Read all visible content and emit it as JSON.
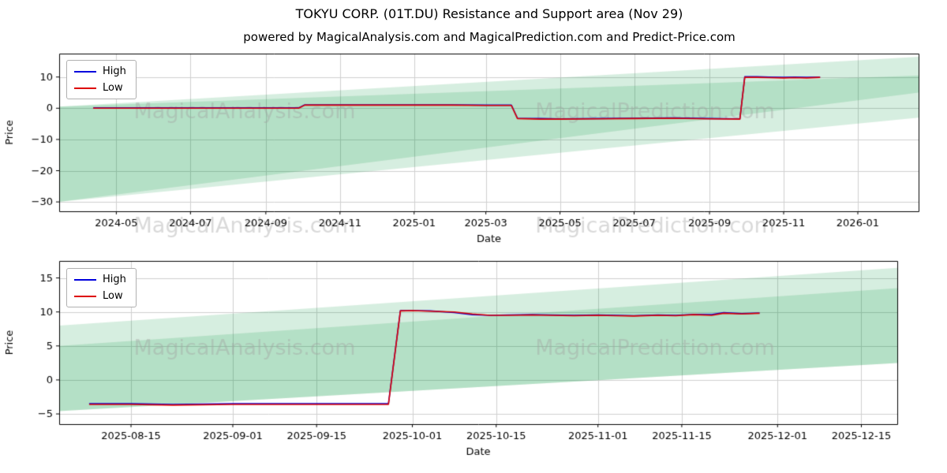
{
  "title": "TOKYU CORP. (01T.DU) Resistance and Support area (Nov 29)",
  "subtitle": "powered by MagicalAnalysis.com and MagicalPrediction.com and Predict-Price.com",
  "watermarks": [
    "MagicalAnalysis.com",
    "MagicalPrediction.com"
  ],
  "colors": {
    "high": "#0000dd",
    "low": "#dd0000",
    "grid": "#cfcfcf",
    "axis": "#000000",
    "band": "rgba(0,150,60,0.16)",
    "watermark": "rgba(160,160,160,0.4)"
  },
  "chart_data": [
    {
      "type": "line",
      "title": "",
      "xlabel": "Date",
      "ylabel": "Price",
      "grid": true,
      "legend_position": "upper-left",
      "xlim": [
        "2024-03-15",
        "2026-02-20"
      ],
      "ylim": [
        -33,
        17.5
      ],
      "yticks": [
        10,
        0,
        -10,
        -20,
        -30
      ],
      "xticks": [
        {
          "v": "2024-05-01",
          "label": "2024-05"
        },
        {
          "v": "2024-07-01",
          "label": "2024-07"
        },
        {
          "v": "2024-09-01",
          "label": "2024-09"
        },
        {
          "v": "2024-11-01",
          "label": "2024-11"
        },
        {
          "v": "2025-01-01",
          "label": "2025-01"
        },
        {
          "v": "2025-03-01",
          "label": "2025-03"
        },
        {
          "v": "2025-05-01",
          "label": "2025-05"
        },
        {
          "v": "2025-07-01",
          "label": "2025-07"
        },
        {
          "v": "2025-09-01",
          "label": "2025-09"
        },
        {
          "v": "2025-11-01",
          "label": "2025-11"
        },
        {
          "v": "2026-01-01",
          "label": "2026-01"
        }
      ],
      "legend": [
        {
          "label": "High",
          "color": "#0000dd"
        },
        {
          "label": "Low",
          "color": "#dd0000"
        }
      ],
      "bands": [
        {
          "top": [
            0.5,
            16.5
          ],
          "bottom": [
            -30,
            5.0
          ],
          "color": "rgba(0,150,60,0.16)"
        },
        {
          "top": [
            0.5,
            10.5
          ],
          "bottom": [
            -30,
            -3.0
          ],
          "color": "rgba(0,150,60,0.16)"
        }
      ],
      "series": [
        {
          "name": "High",
          "color": "#0000dd",
          "x": [
            "2024-04-12",
            "2024-05-01",
            "2024-06-01",
            "2024-07-01",
            "2024-08-01",
            "2024-09-01",
            "2024-09-28",
            "2024-10-03",
            "2024-11-01",
            "2024-12-01",
            "2025-01-01",
            "2025-02-01",
            "2025-03-01",
            "2025-03-22",
            "2025-03-27",
            "2025-04-15",
            "2025-05-01",
            "2025-06-01",
            "2025-07-01",
            "2025-08-01",
            "2025-09-01",
            "2025-09-26",
            "2025-09-30",
            "2025-10-10",
            "2025-10-20",
            "2025-11-01",
            "2025-11-10",
            "2025-11-20",
            "2025-12-01"
          ],
          "y": [
            0.1,
            0.1,
            0.1,
            0.1,
            0.1,
            0.1,
            0.1,
            1.1,
            1.1,
            1.1,
            1.1,
            1.1,
            1.0,
            1.0,
            -3.2,
            -3.3,
            -3.4,
            -3.3,
            -3.2,
            -3.1,
            -3.3,
            -3.4,
            10.1,
            10.1,
            10.0,
            9.9,
            10.0,
            9.9,
            10.0
          ]
        },
        {
          "name": "Low",
          "color": "#dd0000",
          "x": [
            "2024-04-12",
            "2024-05-01",
            "2024-06-01",
            "2024-07-01",
            "2024-08-01",
            "2024-09-01",
            "2024-09-28",
            "2024-10-03",
            "2024-11-01",
            "2024-12-01",
            "2025-01-01",
            "2025-02-01",
            "2025-03-01",
            "2025-03-22",
            "2025-03-27",
            "2025-04-15",
            "2025-05-01",
            "2025-06-01",
            "2025-07-01",
            "2025-08-01",
            "2025-09-01",
            "2025-09-26",
            "2025-09-30",
            "2025-10-10",
            "2025-10-20",
            "2025-11-01",
            "2025-11-10",
            "2025-11-20",
            "2025-12-01"
          ],
          "y": [
            0,
            0,
            0,
            0,
            0,
            0,
            0,
            1,
            1,
            1,
            1,
            1,
            0.9,
            0.9,
            -3.3,
            -3.5,
            -3.5,
            -3.4,
            -3.3,
            -3.2,
            -3.4,
            -3.5,
            9.9,
            9.9,
            9.8,
            9.7,
            9.8,
            9.7,
            9.9
          ]
        }
      ]
    },
    {
      "type": "line",
      "title": "",
      "xlabel": "Date",
      "ylabel": "Price",
      "grid": true,
      "legend_position": "upper-left",
      "xlim": [
        "2025-08-03",
        "2025-12-21"
      ],
      "ylim": [
        -6.5,
        17.5
      ],
      "yticks": [
        15,
        10,
        5,
        0,
        -5
      ],
      "xticks": [
        {
          "v": "2025-08-15",
          "label": "2025-08-15"
        },
        {
          "v": "2025-09-01",
          "label": "2025-09-01"
        },
        {
          "v": "2025-09-15",
          "label": "2025-09-15"
        },
        {
          "v": "2025-10-01",
          "label": "2025-10-01"
        },
        {
          "v": "2025-10-15",
          "label": "2025-10-15"
        },
        {
          "v": "2025-11-01",
          "label": "2025-11-01"
        },
        {
          "v": "2025-11-15",
          "label": "2025-11-15"
        },
        {
          "v": "2025-12-01",
          "label": "2025-12-01"
        },
        {
          "v": "2025-12-15",
          "label": "2025-12-15"
        }
      ],
      "legend": [
        {
          "label": "High",
          "color": "#0000dd"
        },
        {
          "label": "Low",
          "color": "#dd0000"
        }
      ],
      "bands": [
        {
          "top": [
            8.0,
            16.5
          ],
          "bottom": [
            -4.6,
            2.5
          ],
          "color": "rgba(0,150,60,0.16)"
        },
        {
          "top": [
            5.0,
            13.5
          ],
          "bottom": [
            -4.6,
            2.5
          ],
          "color": "rgba(0,150,60,0.16)"
        }
      ],
      "series": [
        {
          "name": "High",
          "color": "#0000dd",
          "x": [
            "2025-08-08",
            "2025-08-15",
            "2025-08-22",
            "2025-09-01",
            "2025-09-08",
            "2025-09-15",
            "2025-09-22",
            "2025-09-27",
            "2025-09-29",
            "2025-10-01",
            "2025-10-04",
            "2025-10-08",
            "2025-10-11",
            "2025-10-14",
            "2025-10-17",
            "2025-10-21",
            "2025-10-24",
            "2025-10-28",
            "2025-11-01",
            "2025-11-04",
            "2025-11-07",
            "2025-11-11",
            "2025-11-14",
            "2025-11-17",
            "2025-11-20",
            "2025-11-22",
            "2025-11-25",
            "2025-11-28"
          ],
          "y": [
            -3.5,
            -3.5,
            -3.6,
            -3.5,
            -3.5,
            -3.5,
            -3.5,
            -3.5,
            10.2,
            10.2,
            10.15,
            9.9,
            9.6,
            9.5,
            9.55,
            9.6,
            9.55,
            9.5,
            9.55,
            9.5,
            9.45,
            9.55,
            9.5,
            9.65,
            9.6,
            9.9,
            9.75,
            9.85
          ]
        },
        {
          "name": "Low",
          "color": "#dd0000",
          "x": [
            "2025-08-08",
            "2025-08-15",
            "2025-08-22",
            "2025-09-01",
            "2025-09-08",
            "2025-09-15",
            "2025-09-22",
            "2025-09-27",
            "2025-09-29",
            "2025-10-01",
            "2025-10-04",
            "2025-10-08",
            "2025-10-11",
            "2025-10-14",
            "2025-10-17",
            "2025-10-21",
            "2025-10-24",
            "2025-10-28",
            "2025-11-01",
            "2025-11-04",
            "2025-11-07",
            "2025-11-11",
            "2025-11-14",
            "2025-11-17",
            "2025-11-20",
            "2025-11-22",
            "2025-11-25",
            "2025-11-28"
          ],
          "y": [
            -3.6,
            -3.6,
            -3.7,
            -3.6,
            -3.6,
            -3.6,
            -3.6,
            -3.6,
            10.15,
            10.2,
            10.1,
            10.0,
            9.7,
            9.5,
            9.5,
            9.55,
            9.5,
            9.45,
            9.5,
            9.45,
            9.4,
            9.5,
            9.45,
            9.6,
            9.5,
            9.8,
            9.7,
            9.8
          ]
        }
      ]
    }
  ]
}
